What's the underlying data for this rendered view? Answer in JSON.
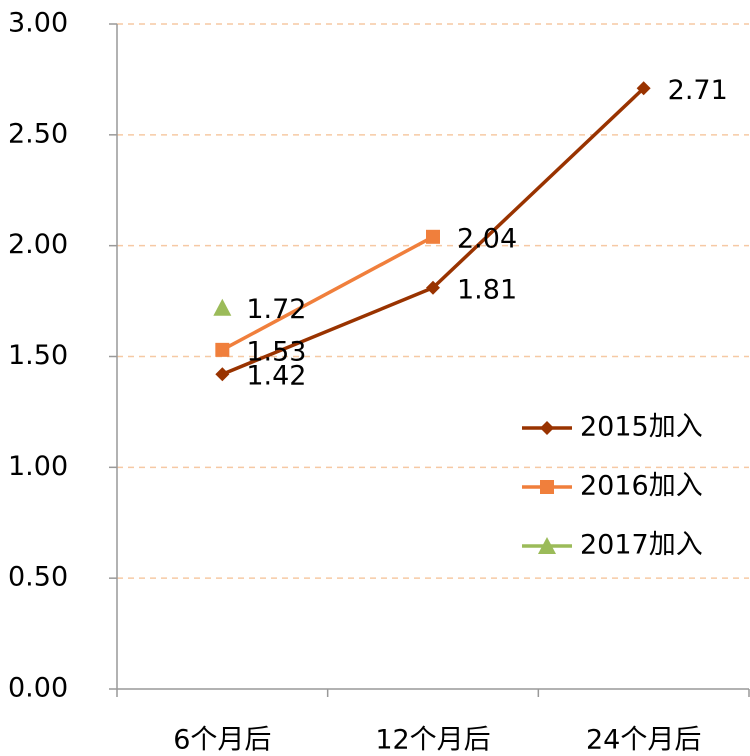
{
  "chart_data": {
    "type": "line",
    "categories": [
      "6个月后",
      "12个月后",
      "24个月后"
    ],
    "series": [
      {
        "name": "2015加入",
        "color": "#993300",
        "marker": "diamond",
        "values": [
          1.42,
          1.81,
          2.71
        ]
      },
      {
        "name": "2016加入",
        "color": "#f07f3c",
        "marker": "square",
        "values": [
          1.53,
          2.04,
          null
        ]
      },
      {
        "name": "2017加入",
        "color": "#9bbb59",
        "marker": "triangle",
        "values": [
          1.72,
          null,
          null
        ]
      }
    ],
    "ylim": [
      0,
      3
    ],
    "yticks": [
      {
        "value": 0,
        "label": "0.00"
      },
      {
        "value": 0.5,
        "label": "0.50"
      },
      {
        "value": 1,
        "label": "1.00"
      },
      {
        "value": 1.5,
        "label": "1.50"
      },
      {
        "value": 2,
        "label": "2.00"
      },
      {
        "value": 2.5,
        "label": "2.50"
      },
      {
        "value": 3,
        "label": "3.00"
      }
    ],
    "grid": true,
    "legend": "right"
  }
}
